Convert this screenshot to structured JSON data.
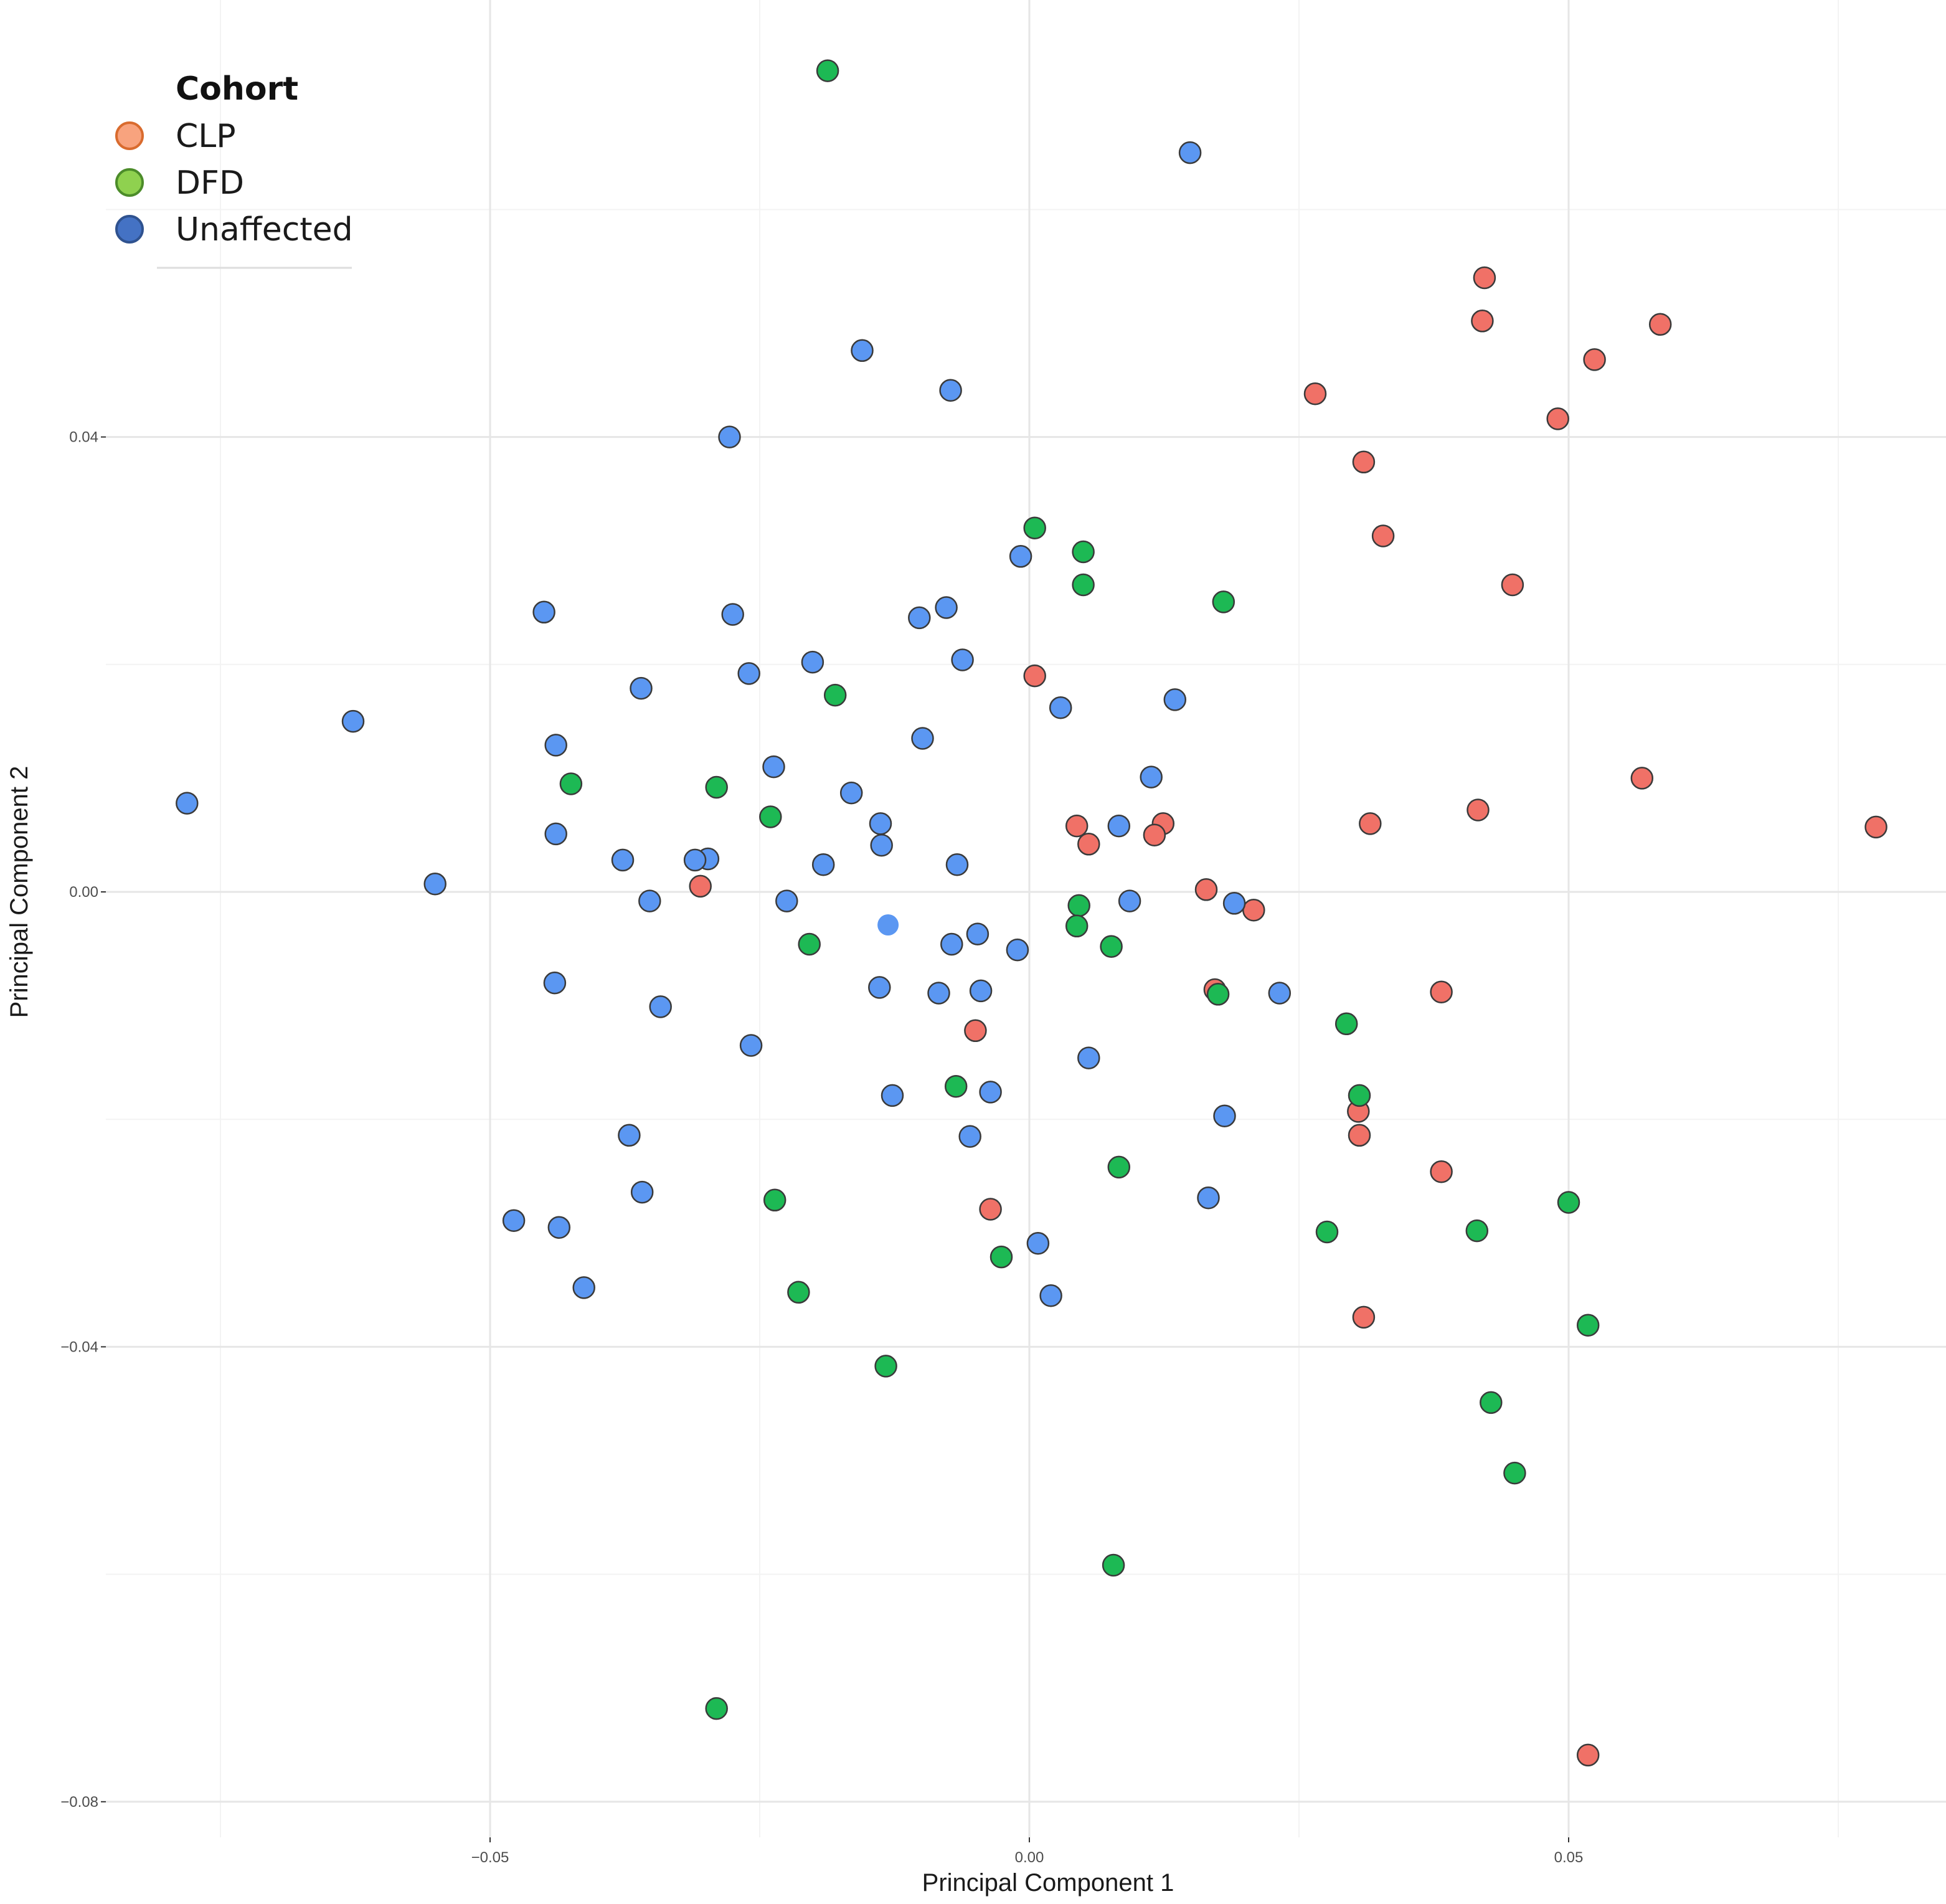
{
  "chart_data": {
    "type": "scatter",
    "xlabel": "Principal Component 1",
    "ylabel": "Principal Component 2",
    "xlim": [
      -0.085,
      0.085
    ],
    "ylim": [
      -0.082,
      0.077
    ],
    "x_ticks": [
      {
        "value": -0.05,
        "label": "-0.05"
      },
      {
        "value": 0.0,
        "label": "0.00"
      },
      {
        "value": 0.05,
        "label": "0.05"
      }
    ],
    "y_ticks": [
      {
        "value": 0.04,
        "label": "0.04"
      },
      {
        "value": 0.0,
        "label": "0.00"
      },
      {
        "value": -0.04,
        "label": "-0.04"
      },
      {
        "value": -0.08,
        "label": "-0.08"
      }
    ],
    "grid": true,
    "legend": {
      "title": "Cohort",
      "position": "top-left",
      "entries": [
        {
          "label": "CLP",
          "color": "#f8a37e",
          "edge": "#d96b2e"
        },
        {
          "label": "DFD",
          "color": "#8fd14f",
          "edge": "#4c8c2a"
        },
        {
          "label": "Unaffected",
          "color": "#4472c4",
          "edge": "#2f528f"
        }
      ]
    },
    "series": [
      {
        "name": "CLP",
        "color": "#f07167",
        "points": [
          [
            0.0422,
            0.054
          ],
          [
            0.042,
            0.0502
          ],
          [
            0.0585,
            0.0499
          ],
          [
            0.0524,
            0.0468
          ],
          [
            0.0265,
            0.0438
          ],
          [
            0.049,
            0.0416
          ],
          [
            0.031,
            0.0378
          ],
          [
            0.0328,
            0.0313
          ],
          [
            0.0448,
            0.027
          ],
          [
            0.0005,
            0.019
          ],
          [
            0.0568,
            0.01
          ],
          [
            0.0785,
            0.0057
          ],
          [
            0.0416,
            0.0072
          ],
          [
            0.0316,
            0.006
          ],
          [
            0.0044,
            0.0058
          ],
          [
            0.0124,
            0.006
          ],
          [
            0.0116,
            0.005
          ],
          [
            0.0055,
            0.0042
          ],
          [
            -0.0305,
            0.0005
          ],
          [
            0.0164,
            0.0002
          ],
          [
            0.0208,
            -0.0016
          ],
          [
            0.0172,
            -0.0086
          ],
          [
            0.0382,
            -0.0088
          ],
          [
            -0.005,
            -0.0122
          ],
          [
            0.0305,
            -0.0193
          ],
          [
            0.0306,
            -0.0214
          ],
          [
            0.0382,
            -0.0246
          ],
          [
            -0.0036,
            -0.0279
          ],
          [
            0.031,
            -0.0374
          ],
          [
            0.0518,
            -0.0759
          ]
        ]
      },
      {
        "name": "DFD",
        "color": "#1db954",
        "points": [
          [
            -0.0187,
            0.0722
          ],
          [
            0.0005,
            0.032
          ],
          [
            0.005,
            0.0299
          ],
          [
            0.005,
            0.027
          ],
          [
            0.018,
            0.0255
          ],
          [
            -0.018,
            0.0173
          ],
          [
            -0.0425,
            0.0095
          ],
          [
            -0.029,
            0.0092
          ],
          [
            -0.024,
            0.0066
          ],
          [
            0.0046,
            -0.0012
          ],
          [
            0.0044,
            -0.003
          ],
          [
            0.0076,
            -0.0048
          ],
          [
            -0.0204,
            -0.0046
          ],
          [
            0.0175,
            -0.009
          ],
          [
            0.0294,
            -0.0116
          ],
          [
            -0.0068,
            -0.0171
          ],
          [
            0.0306,
            -0.0179
          ],
          [
            0.0083,
            -0.0242
          ],
          [
            -0.0236,
            -0.0271
          ],
          [
            0.05,
            -0.0273
          ],
          [
            0.0276,
            -0.0299
          ],
          [
            0.0415,
            -0.0298
          ],
          [
            -0.0026,
            -0.0321
          ],
          [
            -0.0214,
            -0.0352
          ],
          [
            0.0518,
            -0.0381
          ],
          [
            -0.0133,
            -0.0417
          ],
          [
            0.0428,
            -0.0449
          ],
          [
            0.045,
            -0.0511
          ],
          [
            0.0078,
            -0.0592
          ],
          [
            -0.029,
            -0.0718
          ]
        ]
      },
      {
        "name": "Unaffected",
        "color": "#5b97f2",
        "points": [
          [
            0.0149,
            0.065
          ],
          [
            -0.0155,
            0.0476
          ],
          [
            -0.0073,
            0.0441
          ],
          [
            -0.0278,
            0.04
          ],
          [
            -0.0008,
            0.0295
          ],
          [
            -0.045,
            0.0246
          ],
          [
            -0.0275,
            0.0244
          ],
          [
            -0.0077,
            0.025
          ],
          [
            -0.0102,
            0.0241
          ],
          [
            -0.0201,
            0.0202
          ],
          [
            -0.0062,
            0.0204
          ],
          [
            -0.026,
            0.0192
          ],
          [
            -0.036,
            0.0179
          ],
          [
            0.0135,
            0.0169
          ],
          [
            0.0029,
            0.0162
          ],
          [
            -0.0627,
            0.015
          ],
          [
            -0.0099,
            0.0135
          ],
          [
            -0.0439,
            0.0129
          ],
          [
            -0.0237,
            0.011
          ],
          [
            0.0113,
            0.0101
          ],
          [
            -0.0165,
            0.0087
          ],
          [
            -0.0781,
            0.0078
          ],
          [
            -0.0138,
            0.006
          ],
          [
            0.0083,
            0.0058
          ],
          [
            -0.0439,
            0.0051
          ],
          [
            -0.0137,
            0.0041
          ],
          [
            -0.0377,
            0.0028
          ],
          [
            -0.0298,
            0.0029
          ],
          [
            -0.031,
            0.0028
          ],
          [
            -0.0191,
            0.0024
          ],
          [
            -0.0067,
            0.0024
          ],
          [
            -0.0551,
            0.0007
          ],
          [
            -0.0352,
            -0.0008
          ],
          [
            -0.0225,
            -0.0008
          ],
          [
            0.0093,
            -0.0008
          ],
          [
            0.019,
            -0.001
          ],
          [
            -0.0048,
            -0.0037
          ],
          [
            -0.0072,
            -0.0046
          ],
          [
            -0.0011,
            -0.0051
          ],
          [
            -0.044,
            -0.008
          ],
          [
            -0.0139,
            -0.0084
          ],
          [
            -0.0084,
            -0.0089
          ],
          [
            -0.0045,
            -0.0087
          ],
          [
            0.0232,
            -0.0089
          ],
          [
            -0.0342,
            -0.0101
          ],
          [
            -0.0258,
            -0.0135
          ],
          [
            0.0055,
            -0.0146
          ],
          [
            -0.0127,
            -0.0179
          ],
          [
            -0.0036,
            -0.0176
          ],
          [
            0.0181,
            -0.0197
          ],
          [
            -0.0055,
            -0.0215
          ],
          [
            -0.0371,
            -0.0214
          ],
          [
            -0.0359,
            -0.0264
          ],
          [
            0.0166,
            -0.0269
          ],
          [
            -0.0478,
            -0.0289
          ],
          [
            -0.0436,
            -0.0295
          ],
          [
            0.0008,
            -0.0309
          ],
          [
            -0.0413,
            -0.0348
          ],
          [
            0.002,
            -0.0355
          ]
        ]
      },
      {
        "name": "Unaffected",
        "color": "#5b97f2",
        "no_outline": true,
        "points": [
          [
            -0.0131,
            -0.0029
          ]
        ]
      }
    ]
  }
}
